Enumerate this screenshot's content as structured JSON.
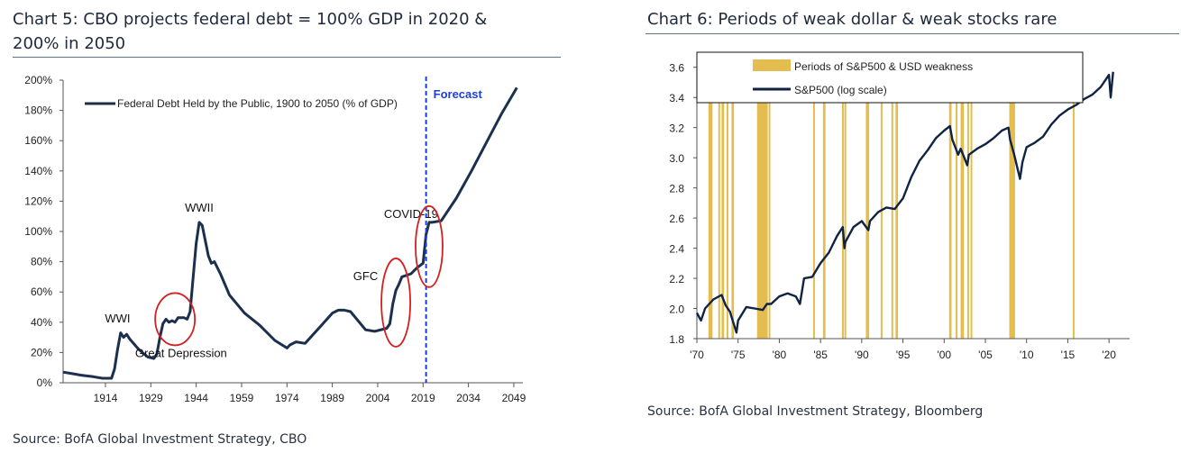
{
  "chart5": {
    "title_line1": "Chart 5: CBO projects federal debt = 100% GDP in 2020 &",
    "title_line2": "200% in 2050",
    "source": "Source: BofA Global Investment Strategy, CBO",
    "chart_data": {
      "type": "line",
      "title": "Chart 5: CBO projects federal debt = 100% GDP in 2020 & 200% in 2050",
      "xlabel": "",
      "ylabel": "",
      "xlim": [
        1900,
        2052
      ],
      "ylim": [
        0,
        200
      ],
      "x_ticks": [
        1914,
        1929,
        1944,
        1959,
        1974,
        1989,
        2004,
        2019,
        2034,
        2049
      ],
      "y_ticks": [
        "0%",
        "20%",
        "40%",
        "60%",
        "80%",
        "100%",
        "120%",
        "140%",
        "160%",
        "180%",
        "200%"
      ],
      "grid": false,
      "legend": "top-left",
      "series": [
        {
          "name": "Federal Debt Held by the Public, 1900 to 2050 (% of GDP)",
          "color": "#1b2f4e",
          "x": [
            1900,
            1903,
            1906,
            1910,
            1913,
            1916,
            1917,
            1918,
            1919,
            1920,
            1921,
            1922,
            1925,
            1928,
            1930,
            1931,
            1932,
            1933,
            1934,
            1935,
            1936,
            1937,
            1938,
            1939,
            1940,
            1941,
            1942,
            1943,
            1944,
            1945,
            1946,
            1947,
            1948,
            1949,
            1950,
            1952,
            1955,
            1960,
            1965,
            1970,
            1974,
            1975,
            1977,
            1980,
            1985,
            1989,
            1991,
            1993,
            1995,
            2000,
            2003,
            2007,
            2008,
            2009,
            2010,
            2011,
            2012,
            2015,
            2017,
            2019,
            2020,
            2021,
            2022,
            2025,
            2030,
            2035,
            2040,
            2045,
            2050
          ],
          "y": [
            7,
            6,
            5,
            4,
            3,
            3,
            9,
            22,
            33,
            30,
            32,
            29,
            22,
            17,
            16,
            19,
            30,
            39,
            42,
            40,
            41,
            40,
            43,
            43,
            43,
            42,
            47,
            70,
            92,
            106,
            104,
            94,
            84,
            79,
            80,
            72,
            58,
            46,
            38,
            28,
            23,
            25,
            27,
            26,
            37,
            46,
            48,
            48,
            47,
            35,
            34,
            36,
            39,
            52,
            61,
            65,
            70,
            72,
            76,
            79,
            98,
            106,
            106,
            107,
            122,
            140,
            159,
            178,
            195
          ]
        }
      ],
      "forecast_marker": {
        "x": 2020,
        "label": "Forecast",
        "color": "#1f3fd6"
      },
      "annotations": [
        {
          "text": "WWI",
          "x": 1918,
          "y": 40
        },
        {
          "text": "Great Depression",
          "x": 1939,
          "y": 17
        },
        {
          "text": "WWII",
          "x": 1945,
          "y": 113
        },
        {
          "text": "GFC",
          "x": 2000,
          "y": 68
        },
        {
          "text": "COVID-19",
          "x": 2015,
          "y": 109
        }
      ],
      "highlight_circles": [
        {
          "x": 1937,
          "y": 42,
          "color": "#d42020"
        },
        {
          "x": 2010,
          "y": 53,
          "color": "#d42020"
        },
        {
          "x": 2021,
          "y": 90,
          "color": "#d42020"
        }
      ]
    }
  },
  "chart6": {
    "title": "Chart 6: Periods of weak dollar & weak stocks rare",
    "source": "Source: BofA Global Investment Strategy, Bloomberg",
    "chart_data": {
      "type": "line",
      "title": "Chart 6: Periods of weak dollar & weak stocks rare",
      "xlabel": "",
      "ylabel": "",
      "xlim": [
        1970,
        2022.5
      ],
      "ylim": [
        1.8,
        3.7
      ],
      "x_ticks": [
        "'70",
        "'75",
        "'80",
        "'85",
        "'90",
        "'95",
        "'00",
        "'05",
        "'10",
        "'15",
        "'20"
      ],
      "x_tick_years": [
        1970,
        1975,
        1980,
        1985,
        1990,
        1995,
        2000,
        2005,
        2010,
        2015,
        2020
      ],
      "y_ticks": [
        "1.8",
        "2.0",
        "2.2",
        "2.4",
        "2.6",
        "2.8",
        "3.0",
        "3.2",
        "3.4",
        "3.6"
      ],
      "y_tick_values": [
        1.8,
        2.0,
        2.2,
        2.4,
        2.6,
        2.8,
        3.0,
        3.2,
        3.4,
        3.6
      ],
      "grid": false,
      "legend": "top",
      "legend_entries": [
        {
          "label": "Periods of S&P500 & USD weakness",
          "color": "#e3bd50",
          "kind": "bar"
        },
        {
          "label": "S&P500 (log scale)",
          "color": "#0f2344",
          "kind": "line"
        }
      ],
      "weakness_periods": [
        [
          1971.4,
          1971.9
        ],
        [
          1972.6,
          1972.8
        ],
        [
          1973.0,
          1973.3
        ],
        [
          1973.6,
          1973.8
        ],
        [
          1974.2,
          1974.5
        ],
        [
          1977.3,
          1978.6
        ],
        [
          1978.7,
          1978.9
        ],
        [
          1984.1,
          1984.3
        ],
        [
          1985.3,
          1985.6
        ],
        [
          1987.6,
          1987.8
        ],
        [
          1987.9,
          1988.1
        ],
        [
          1990.5,
          1990.9
        ],
        [
          1992.3,
          1992.5
        ],
        [
          1993.6,
          1993.8
        ],
        [
          1994.1,
          1994.4
        ],
        [
          2000.6,
          2000.9
        ],
        [
          2001.4,
          2001.6
        ],
        [
          2002.0,
          2002.4
        ],
        [
          2002.8,
          2003.0
        ],
        [
          2003.2,
          2003.4
        ],
        [
          2007.9,
          2008.6
        ],
        [
          2015.6,
          2015.8
        ]
      ],
      "series": [
        {
          "name": "S&P500 (log scale)",
          "color": "#0f2344",
          "x": [
            1970,
            1970.5,
            1971,
            1972,
            1973,
            1973.5,
            1974,
            1974.8,
            1975,
            1976,
            1977,
            1978,
            1978.5,
            1979,
            1980,
            1981,
            1982,
            1982.5,
            1983,
            1984,
            1985,
            1986,
            1987,
            1987.7,
            1987.9,
            1988,
            1989,
            1990,
            1990.8,
            1991,
            1992,
            1993,
            1994,
            1995,
            1996,
            1997,
            1998,
            1999,
            2000,
            2000.7,
            2001,
            2001.7,
            2002,
            2002.8,
            2003,
            2004,
            2005,
            2006,
            2007,
            2007.8,
            2008,
            2008.5,
            2009.2,
            2009.5,
            2010,
            2011,
            2012,
            2013,
            2014,
            2015,
            2016,
            2017,
            2018,
            2019,
            2020,
            2020.2,
            2020.5
          ],
          "y": [
            1.97,
            1.92,
            2.0,
            2.06,
            2.09,
            2.02,
            1.98,
            1.84,
            1.92,
            2.01,
            2.0,
            1.99,
            2.03,
            2.03,
            2.08,
            2.1,
            2.08,
            2.03,
            2.2,
            2.21,
            2.3,
            2.37,
            2.48,
            2.54,
            2.4,
            2.44,
            2.54,
            2.58,
            2.52,
            2.58,
            2.64,
            2.67,
            2.66,
            2.73,
            2.87,
            2.98,
            3.05,
            3.13,
            3.18,
            3.21,
            3.12,
            3.02,
            3.06,
            2.95,
            3.02,
            3.06,
            3.09,
            3.13,
            3.18,
            3.2,
            3.12,
            3.02,
            2.86,
            2.97,
            3.07,
            3.1,
            3.14,
            3.22,
            3.28,
            3.32,
            3.35,
            3.39,
            3.42,
            3.47,
            3.55,
            3.4,
            3.57
          ]
        }
      ]
    }
  }
}
